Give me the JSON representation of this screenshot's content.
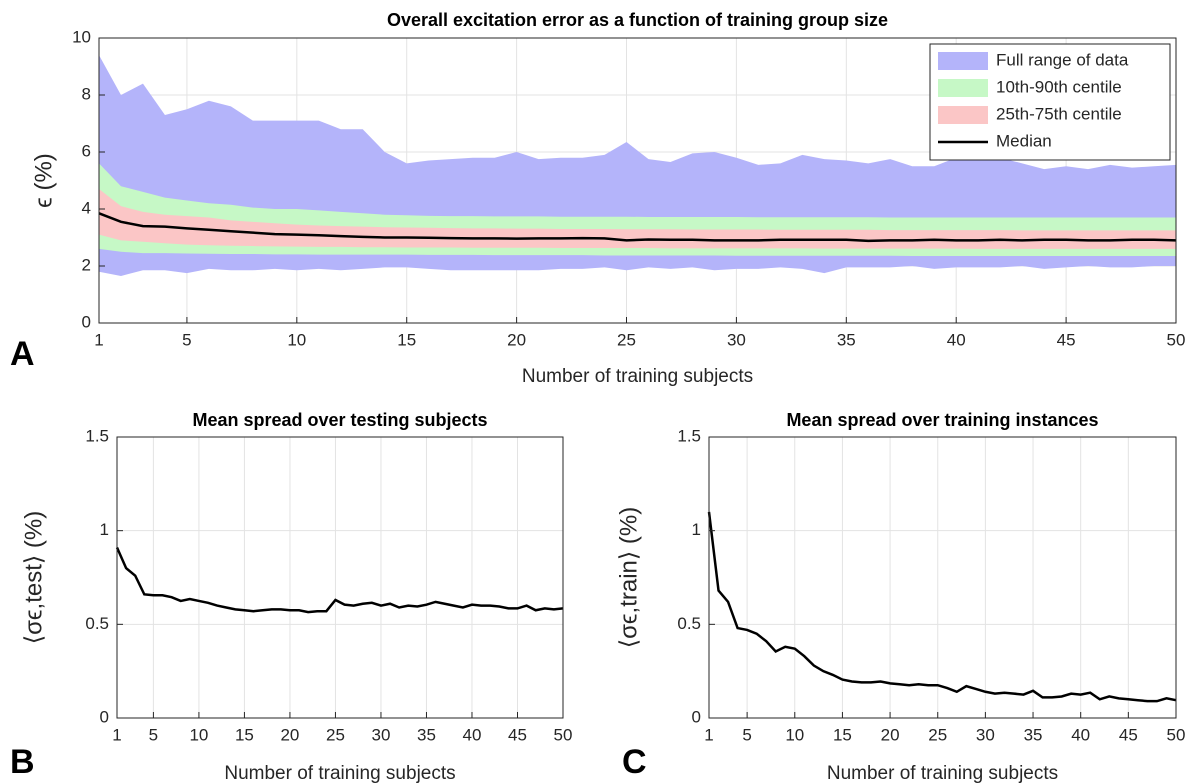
{
  "letters": [
    "A",
    "B",
    "C"
  ],
  "chart_data": [
    {
      "type": "band",
      "title": "Overall excitation error as a function of training group size",
      "xlabel": "Number of training subjects",
      "ylabel": "ϵ  (%)",
      "x": [
        1,
        2,
        3,
        4,
        5,
        6,
        7,
        8,
        9,
        10,
        11,
        12,
        13,
        14,
        15,
        16,
        17,
        18,
        19,
        20,
        21,
        22,
        23,
        24,
        25,
        26,
        27,
        28,
        29,
        30,
        31,
        32,
        33,
        34,
        35,
        36,
        37,
        38,
        39,
        40,
        41,
        42,
        43,
        44,
        45,
        46,
        47,
        48,
        49,
        50
      ],
      "xlim": [
        1,
        50
      ],
      "xticks": [
        1,
        5,
        10,
        15,
        20,
        25,
        30,
        35,
        40,
        45,
        50
      ],
      "ylim": [
        0,
        10
      ],
      "yticks": [
        0,
        2,
        4,
        6,
        8,
        10
      ],
      "grid": true,
      "legend": "upper right",
      "series": [
        {
          "name": "Full range of data",
          "color": "#b4b4fa",
          "upper": [
            9.4,
            8.0,
            8.4,
            7.3,
            7.5,
            7.8,
            7.6,
            7.1,
            7.1,
            7.1,
            7.1,
            6.8,
            6.8,
            6.0,
            5.6,
            5.7,
            5.75,
            5.8,
            5.8,
            6.0,
            5.75,
            5.8,
            5.8,
            5.9,
            6.35,
            5.75,
            5.65,
            5.95,
            6.0,
            5.8,
            5.55,
            5.6,
            5.9,
            5.75,
            5.7,
            5.6,
            5.75,
            5.5,
            5.5,
            5.8,
            5.85,
            5.8,
            5.6,
            5.4,
            5.5,
            5.4,
            5.55,
            5.45,
            5.5,
            5.55
          ],
          "lower": [
            1.8,
            1.65,
            1.85,
            1.85,
            1.75,
            1.9,
            1.85,
            1.85,
            1.9,
            1.85,
            1.9,
            1.85,
            1.9,
            1.95,
            1.95,
            1.9,
            1.85,
            1.85,
            1.85,
            1.85,
            1.85,
            1.9,
            1.9,
            1.95,
            1.85,
            1.95,
            1.9,
            1.95,
            1.85,
            1.9,
            1.9,
            1.95,
            1.9,
            1.75,
            1.95,
            1.95,
            1.95,
            2.0,
            1.9,
            1.95,
            1.95,
            1.95,
            2.0,
            1.9,
            1.95,
            2.0,
            1.95,
            1.95,
            2.0,
            2.0
          ]
        },
        {
          "name": "10th-90th centile",
          "color": "#c6f8c6",
          "upper": [
            5.6,
            4.8,
            4.6,
            4.4,
            4.3,
            4.2,
            4.15,
            4.05,
            4.0,
            4.0,
            3.95,
            3.9,
            3.85,
            3.8,
            3.78,
            3.76,
            3.75,
            3.75,
            3.74,
            3.74,
            3.74,
            3.73,
            3.73,
            3.73,
            3.73,
            3.72,
            3.72,
            3.72,
            3.72,
            3.72,
            3.71,
            3.71,
            3.71,
            3.71,
            3.71,
            3.71,
            3.7,
            3.7,
            3.7,
            3.7,
            3.7,
            3.7,
            3.7,
            3.7,
            3.7,
            3.7,
            3.7,
            3.7,
            3.7,
            3.7
          ],
          "lower": [
            2.6,
            2.5,
            2.45,
            2.45,
            2.44,
            2.43,
            2.42,
            2.42,
            2.41,
            2.41,
            2.4,
            2.4,
            2.4,
            2.4,
            2.4,
            2.39,
            2.39,
            2.39,
            2.38,
            2.38,
            2.38,
            2.38,
            2.38,
            2.37,
            2.37,
            2.37,
            2.37,
            2.37,
            2.37,
            2.36,
            2.36,
            2.36,
            2.36,
            2.36,
            2.36,
            2.36,
            2.36,
            2.35,
            2.35,
            2.35,
            2.35,
            2.35,
            2.35,
            2.35,
            2.35,
            2.35,
            2.35,
            2.35,
            2.35,
            2.35
          ]
        },
        {
          "name": "25th-75th centile",
          "color": "#fbc6c6",
          "upper": [
            4.7,
            4.1,
            3.9,
            3.8,
            3.75,
            3.7,
            3.6,
            3.55,
            3.5,
            3.45,
            3.42,
            3.4,
            3.38,
            3.36,
            3.35,
            3.34,
            3.33,
            3.32,
            3.32,
            3.31,
            3.31,
            3.3,
            3.3,
            3.3,
            3.29,
            3.29,
            3.29,
            3.28,
            3.28,
            3.28,
            3.28,
            3.27,
            3.27,
            3.27,
            3.27,
            3.27,
            3.26,
            3.26,
            3.26,
            3.26,
            3.26,
            3.26,
            3.25,
            3.25,
            3.25,
            3.25,
            3.25,
            3.25,
            3.25,
            3.25
          ],
          "lower": [
            3.1,
            2.9,
            2.85,
            2.8,
            2.75,
            2.73,
            2.71,
            2.7,
            2.69,
            2.68,
            2.67,
            2.67,
            2.66,
            2.66,
            2.65,
            2.65,
            2.65,
            2.64,
            2.64,
            2.64,
            2.64,
            2.63,
            2.63,
            2.63,
            2.63,
            2.63,
            2.62,
            2.62,
            2.62,
            2.62,
            2.62,
            2.62,
            2.62,
            2.61,
            2.61,
            2.61,
            2.61,
            2.61,
            2.61,
            2.61,
            2.6,
            2.6,
            2.6,
            2.6,
            2.6,
            2.6,
            2.6,
            2.6,
            2.6,
            2.6
          ]
        },
        {
          "name": "Median",
          "color": "#000000",
          "values": [
            3.85,
            3.55,
            3.4,
            3.38,
            3.32,
            3.27,
            3.22,
            3.17,
            3.12,
            3.1,
            3.08,
            3.05,
            3.02,
            3.0,
            3.0,
            2.99,
            2.98,
            2.97,
            2.97,
            2.96,
            2.97,
            2.97,
            2.98,
            2.97,
            2.9,
            2.93,
            2.92,
            2.92,
            2.9,
            2.9,
            2.9,
            2.92,
            2.92,
            2.92,
            2.92,
            2.88,
            2.9,
            2.9,
            2.92,
            2.9,
            2.9,
            2.92,
            2.9,
            2.92,
            2.92,
            2.9,
            2.9,
            2.92,
            2.92,
            2.9
          ]
        }
      ]
    },
    {
      "type": "line",
      "title": "Mean spread over testing subjects",
      "xlabel": "Number of training subjects",
      "ylabel": "⟨σϵ,test⟩ (%)",
      "x": [
        1,
        2,
        3,
        4,
        5,
        6,
        7,
        8,
        9,
        10,
        11,
        12,
        13,
        14,
        15,
        16,
        17,
        18,
        19,
        20,
        21,
        22,
        23,
        24,
        25,
        26,
        27,
        28,
        29,
        30,
        31,
        32,
        33,
        34,
        35,
        36,
        37,
        38,
        39,
        40,
        41,
        42,
        43,
        44,
        45,
        46,
        47,
        48,
        49,
        50
      ],
      "xlim": [
        1,
        50
      ],
      "xticks": [
        1,
        5,
        10,
        15,
        20,
        25,
        30,
        35,
        40,
        45,
        50
      ],
      "ylim": [
        0,
        1.5
      ],
      "yticks": [
        0,
        0.5,
        1,
        1.5
      ],
      "grid": true,
      "color": "#000000",
      "values": [
        0.91,
        0.8,
        0.76,
        0.66,
        0.655,
        0.655,
        0.645,
        0.625,
        0.635,
        0.625,
        0.615,
        0.6,
        0.59,
        0.58,
        0.575,
        0.57,
        0.575,
        0.58,
        0.58,
        0.575,
        0.575,
        0.565,
        0.57,
        0.57,
        0.63,
        0.605,
        0.6,
        0.61,
        0.615,
        0.6,
        0.61,
        0.59,
        0.6,
        0.595,
        0.605,
        0.62,
        0.61,
        0.6,
        0.59,
        0.605,
        0.6,
        0.6,
        0.595,
        0.585,
        0.585,
        0.6,
        0.575,
        0.585,
        0.58,
        0.585
      ]
    },
    {
      "type": "line",
      "title": "Mean spread over training instances",
      "xlabel": "Number of training subjects",
      "ylabel": "⟨σϵ,train⟩ (%)",
      "x": [
        1,
        2,
        3,
        4,
        5,
        6,
        7,
        8,
        9,
        10,
        11,
        12,
        13,
        14,
        15,
        16,
        17,
        18,
        19,
        20,
        21,
        22,
        23,
        24,
        25,
        26,
        27,
        28,
        29,
        30,
        31,
        32,
        33,
        34,
        35,
        36,
        37,
        38,
        39,
        40,
        41,
        42,
        43,
        44,
        45,
        46,
        47,
        48,
        49,
        50
      ],
      "xlim": [
        1,
        50
      ],
      "xticks": [
        1,
        5,
        10,
        15,
        20,
        25,
        30,
        35,
        40,
        45,
        50
      ],
      "ylim": [
        0,
        1.5
      ],
      "yticks": [
        0,
        0.5,
        1,
        1.5
      ],
      "grid": true,
      "color": "#000000",
      "values": [
        1.1,
        0.68,
        0.62,
        0.48,
        0.47,
        0.45,
        0.41,
        0.355,
        0.38,
        0.37,
        0.33,
        0.28,
        0.25,
        0.23,
        0.205,
        0.195,
        0.19,
        0.19,
        0.195,
        0.185,
        0.18,
        0.175,
        0.18,
        0.175,
        0.175,
        0.16,
        0.14,
        0.17,
        0.155,
        0.14,
        0.13,
        0.135,
        0.13,
        0.125,
        0.145,
        0.11,
        0.11,
        0.115,
        0.13,
        0.125,
        0.135,
        0.1,
        0.115,
        0.105,
        0.1,
        0.095,
        0.09,
        0.09,
        0.105,
        0.095
      ]
    }
  ]
}
